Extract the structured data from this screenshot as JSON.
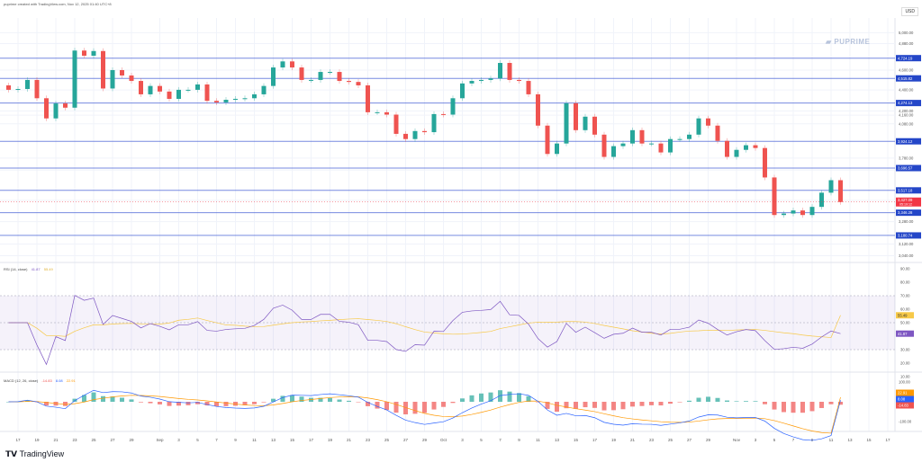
{
  "header": {
    "caption": "puprime created with TradingView.com, Nov 12, 2025 01:40 UTC+8",
    "currency": "USD"
  },
  "watermark": "PUPRIME",
  "footer": {
    "logo": "TradingView"
  },
  "colors": {
    "up": "#26a69a",
    "down": "#ef5350",
    "level": "#4a63d6",
    "badge": "#2446c8",
    "price_badge": "#f23645",
    "rsi": "#7e57c2",
    "rsi_ma": "#f7c948",
    "macd": "#2962ff",
    "signal": "#ff9800"
  },
  "chart_data": [
    {
      "type": "candlestick",
      "scale": "log",
      "grid": true,
      "y_tick_labels": [
        "5,000.00",
        "4,880.00",
        "4,600.00",
        "4,400.00",
        "4,200.00",
        "4,160.00",
        "4,080.00",
        "3,780.00",
        "3,680.00",
        "3,440.00",
        "3,280.00",
        "3,120.00",
        "3,040.00"
      ],
      "x_tick_labels": [
        "17",
        "19",
        "21",
        "23",
        "25",
        "27",
        "29",
        "Sep",
        "3",
        "5",
        "7",
        "9",
        "11",
        "13",
        "15",
        "17",
        "19",
        "21",
        "23",
        "25",
        "27",
        "29",
        "Oct",
        "3",
        "5",
        "7",
        "9",
        "11",
        "13",
        "15",
        "17",
        "19",
        "21",
        "23",
        "25",
        "27",
        "29",
        "Nov",
        "3",
        "5",
        "7",
        "9",
        "11",
        "13",
        "15",
        "17"
      ],
      "levels": [
        4724.19,
        4515.82,
        4274.13,
        3924.12,
        3696.57,
        3517.18,
        3346.28,
        3180.74
      ],
      "level_labels": [
        "4,724.19",
        "4,515.82",
        "4,274.13",
        "3,924.12",
        "3,696.57",
        "3,517.18",
        "3,346.28",
        "3,180.74"
      ],
      "last_price": 3427.09,
      "last_price_label": "3,427.09",
      "countdown": "05:19:12",
      "closes": [
        [
          "2025-08-16",
          4402
        ],
        [
          "2025-08-17",
          4410
        ],
        [
          "2025-08-18",
          4500
        ],
        [
          "2025-08-19",
          4320
        ],
        [
          "2025-08-20",
          4130
        ],
        [
          "2025-08-21",
          4270
        ],
        [
          "2025-08-22",
          4230
        ],
        [
          "2025-08-23",
          4805
        ],
        [
          "2025-08-24",
          4750
        ],
        [
          "2025-08-25",
          4800
        ],
        [
          "2025-08-26",
          4415
        ],
        [
          "2025-08-27",
          4600
        ],
        [
          "2025-08-28",
          4545
        ],
        [
          "2025-08-29",
          4490
        ],
        [
          "2025-08-30",
          4358
        ],
        [
          "2025-08-31",
          4440
        ],
        [
          "2025-09-01",
          4385
        ],
        [
          "2025-09-02",
          4314
        ],
        [
          "2025-09-03",
          4402
        ],
        [
          "2025-09-04",
          4402
        ],
        [
          "2025-09-05",
          4455
        ],
        [
          "2025-09-06",
          4295
        ],
        [
          "2025-09-07",
          4280
        ],
        [
          "2025-09-08",
          4305
        ],
        [
          "2025-09-09",
          4314
        ],
        [
          "2025-09-10",
          4320
        ],
        [
          "2025-09-11",
          4358
        ],
        [
          "2025-09-12",
          4440
        ],
        [
          "2025-09-13",
          4627
        ],
        [
          "2025-09-14",
          4690
        ],
        [
          "2025-09-15",
          4627
        ],
        [
          "2025-09-16",
          4500
        ],
        [
          "2025-09-17",
          4500
        ],
        [
          "2025-09-18",
          4581
        ],
        [
          "2025-09-19",
          4581
        ],
        [
          "2025-09-20",
          4490
        ],
        [
          "2025-09-21",
          4480
        ],
        [
          "2025-09-22",
          4446
        ],
        [
          "2025-09-23",
          4187
        ],
        [
          "2025-09-24",
          4187
        ],
        [
          "2025-09-25",
          4165
        ],
        [
          "2025-09-26",
          3990
        ],
        [
          "2025-09-27",
          3944
        ],
        [
          "2025-09-28",
          4015
        ],
        [
          "2025-09-29",
          4005
        ],
        [
          "2025-09-30",
          4170
        ],
        [
          "2025-10-01",
          4165
        ],
        [
          "2025-10-02",
          4320
        ],
        [
          "2025-10-03",
          4465
        ],
        [
          "2025-10-04",
          4490
        ],
        [
          "2025-10-05",
          4500
        ],
        [
          "2025-10-06",
          4515
        ],
        [
          "2025-10-07",
          4674
        ],
        [
          "2025-10-08",
          4500
        ],
        [
          "2025-10-09",
          4490
        ],
        [
          "2025-10-10",
          4358
        ],
        [
          "2025-10-11",
          4064
        ],
        [
          "2025-10-12",
          3815
        ],
        [
          "2025-10-13",
          3905
        ],
        [
          "2025-10-14",
          4272
        ],
        [
          "2025-10-15",
          4023
        ],
        [
          "2025-10-16",
          4146
        ],
        [
          "2025-10-17",
          3983
        ],
        [
          "2025-10-18",
          3790
        ],
        [
          "2025-10-19",
          3882
        ],
        [
          "2025-10-20",
          3905
        ],
        [
          "2025-10-21",
          4023
        ],
        [
          "2025-10-22",
          3905
        ],
        [
          "2025-10-23",
          3905
        ],
        [
          "2025-10-24",
          3828
        ],
        [
          "2025-10-25",
          3944
        ],
        [
          "2025-10-26",
          3944
        ],
        [
          "2025-10-27",
          3983
        ],
        [
          "2025-10-28",
          4130
        ],
        [
          "2025-10-29",
          4064
        ],
        [
          "2025-10-30",
          3928
        ],
        [
          "2025-10-31",
          3790
        ],
        [
          "2025-11-01",
          3850
        ],
        [
          "2025-11-02",
          3890
        ],
        [
          "2025-11-03",
          3866
        ],
        [
          "2025-11-04",
          3620
        ],
        [
          "2025-11-05",
          3329
        ],
        [
          "2025-11-06",
          3340
        ],
        [
          "2025-11-07",
          3363
        ],
        [
          "2025-11-08",
          3329
        ],
        [
          "2025-11-09",
          3390
        ],
        [
          "2025-11-10",
          3499
        ],
        [
          "2025-11-11",
          3598
        ],
        [
          "2025-11-12",
          3427
        ]
      ]
    },
    {
      "type": "line",
      "title": "RSI (14, close)",
      "values_label": [
        "41.87",
        "55.49"
      ],
      "rsi_value": 41.87,
      "rsi_ma_value": 55.49,
      "y_tick_labels": [
        "90.00",
        "80.00",
        "70.00",
        "60.00",
        "50.00",
        "40.00",
        "30.00",
        "20.00",
        "10.00"
      ],
      "band": [
        30,
        70
      ]
    },
    {
      "type": "bar",
      "title": "MACD (12, 26, close)",
      "values_label": [
        "-14.83",
        "8.08",
        "22.91"
      ],
      "histogram": -14.83,
      "macd": 8.08,
      "signal": 22.91,
      "y_tick_labels": [
        "100.00",
        "-100.00"
      ]
    }
  ]
}
